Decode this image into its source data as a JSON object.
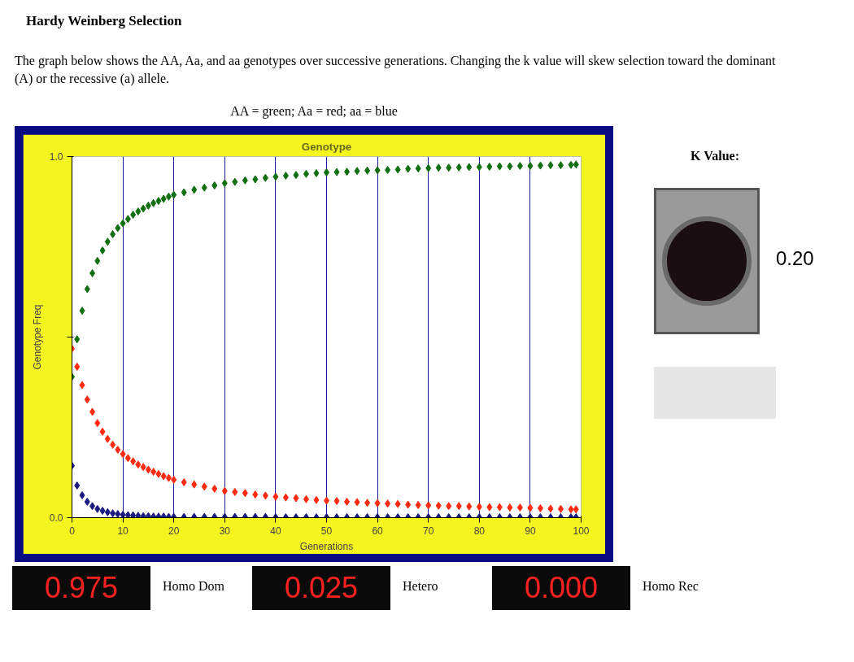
{
  "chart_data": {
    "type": "scatter",
    "title": "Genotype",
    "xlabel": "Generations",
    "ylabel": "Genotype Freq",
    "annotations": [
      "Hardy Weinberg Selection",
      "The graph below shows the AA, Aa, and aa genotypes over successive generations. Changing the k value will skew selection toward the dominant (A) or the recessive (a) allele.",
      "AA = green; Aa = red; aa = blue",
      "K Value:",
      "0.20",
      "0.975",
      "Homo Dom",
      "0.025",
      "Hetero",
      "0.000",
      "Homo Rec"
    ],
    "x": [
      0,
      1,
      2,
      3,
      4,
      5,
      6,
      7,
      8,
      9,
      10,
      11,
      12,
      13,
      14,
      15,
      16,
      17,
      18,
      19,
      20,
      22,
      24,
      26,
      28,
      30,
      32,
      34,
      36,
      38,
      40,
      42,
      44,
      46,
      48,
      50,
      52,
      54,
      56,
      58,
      60,
      62,
      64,
      66,
      68,
      70,
      72,
      74,
      76,
      78,
      80,
      82,
      84,
      86,
      88,
      90,
      92,
      94,
      96,
      98,
      99
    ],
    "series": [
      {
        "color": "#107010",
        "values": [
          0.39,
          0.494,
          0.573,
          0.633,
          0.677,
          0.711,
          0.74,
          0.764,
          0.785,
          0.802,
          0.815,
          0.827,
          0.839,
          0.848,
          0.856,
          0.864,
          0.871,
          0.877,
          0.883,
          0.889,
          0.894,
          0.901,
          0.908,
          0.914,
          0.92,
          0.926,
          0.93,
          0.934,
          0.937,
          0.941,
          0.944,
          0.947,
          0.949,
          0.952,
          0.954,
          0.956,
          0.957,
          0.958,
          0.96,
          0.961,
          0.962,
          0.963,
          0.964,
          0.966,
          0.967,
          0.968,
          0.969,
          0.969,
          0.97,
          0.971,
          0.971,
          0.972,
          0.973,
          0.973,
          0.974,
          0.974,
          0.975,
          0.976,
          0.976,
          0.977,
          0.978
        ]
      },
      {
        "color": "#ff2a10",
        "values": [
          0.468,
          0.418,
          0.367,
          0.327,
          0.293,
          0.262,
          0.238,
          0.218,
          0.202,
          0.188,
          0.176,
          0.165,
          0.156,
          0.147,
          0.14,
          0.133,
          0.127,
          0.121,
          0.115,
          0.11,
          0.105,
          0.098,
          0.092,
          0.086,
          0.08,
          0.074,
          0.071,
          0.068,
          0.064,
          0.061,
          0.058,
          0.056,
          0.054,
          0.051,
          0.049,
          0.047,
          0.046,
          0.044,
          0.043,
          0.041,
          0.04,
          0.039,
          0.038,
          0.036,
          0.035,
          0.034,
          0.033,
          0.032,
          0.032,
          0.031,
          0.03,
          0.029,
          0.029,
          0.028,
          0.028,
          0.027,
          0.026,
          0.025,
          0.024,
          0.023,
          0.023
        ]
      },
      {
        "color": "#1a1a80",
        "values": [
          0.144,
          0.089,
          0.062,
          0.044,
          0.032,
          0.024,
          0.019,
          0.015,
          0.012,
          0.01,
          0.008,
          0.007,
          0.006,
          0.005,
          0.004,
          0.004,
          0.003,
          0.003,
          0.003,
          0.002,
          0.002,
          0.002,
          0.002,
          0.002,
          0.002,
          0.002,
          0.002,
          0.002,
          0.002,
          0.002,
          0.001,
          0.001,
          0.001,
          0.001,
          0.001,
          0.001,
          0.001,
          0.001,
          0.001,
          0.001,
          0.001,
          0.001,
          0.001,
          0.001,
          0.001,
          0.001,
          0.001,
          0.001,
          0.001,
          0.001,
          0.001,
          0.001,
          0.001,
          0.001,
          0.001,
          0.001,
          0.001,
          0.001,
          0.001,
          0.001,
          0.001
        ]
      }
    ],
    "xlim": [
      0,
      100
    ],
    "ylim": [
      0,
      1
    ],
    "xticks": [
      0,
      10,
      20,
      30,
      40,
      50,
      60,
      70,
      80,
      90,
      100
    ],
    "yticks": [
      {
        "value": 0,
        "label": "0.0"
      },
      {
        "value": 0.5,
        "label": null
      },
      {
        "value": 1,
        "label": "1.0"
      }
    ],
    "grid": "x",
    "marker": "diamond"
  }
}
